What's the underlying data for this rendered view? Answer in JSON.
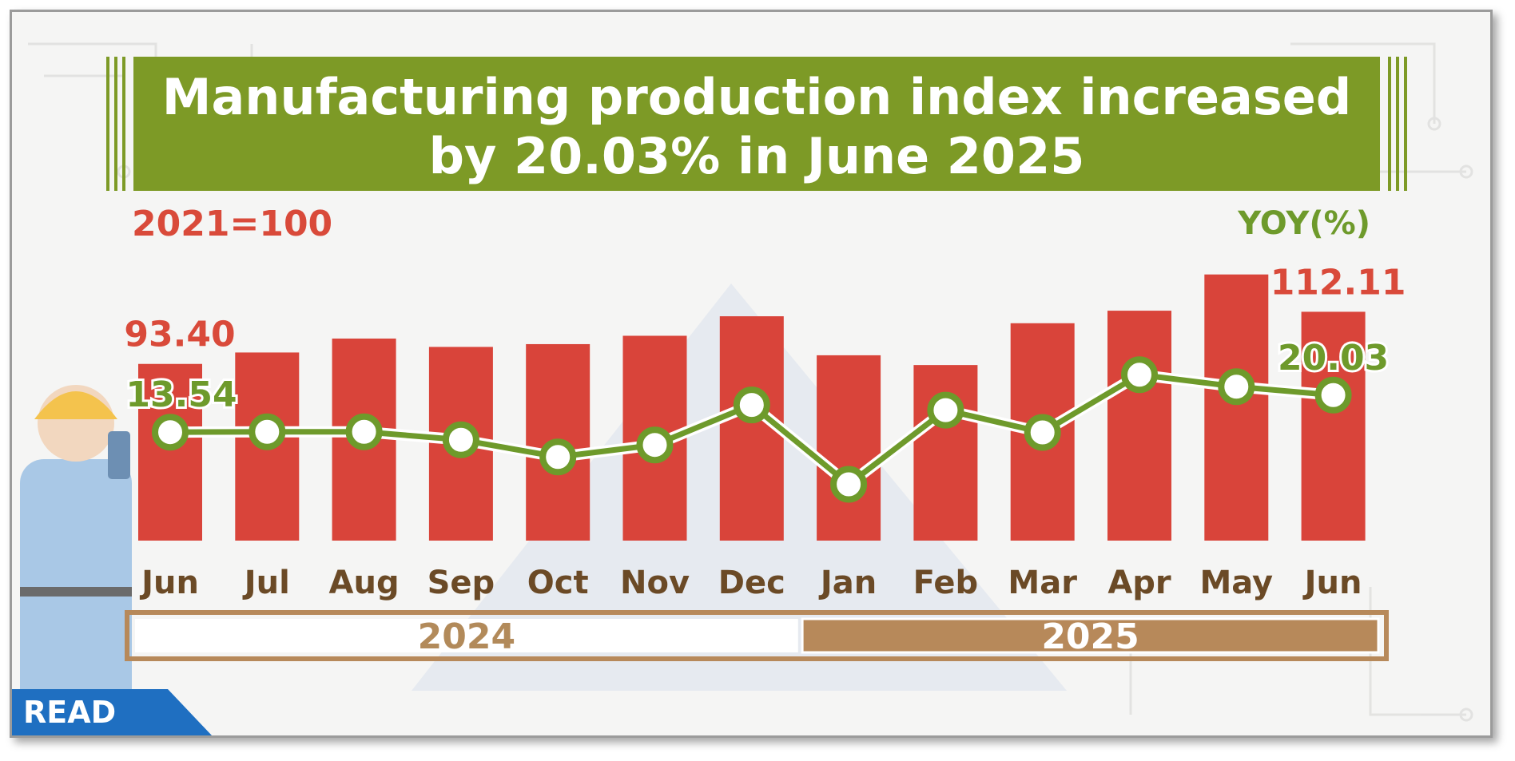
{
  "title_lines": [
    "Manufacturing production index increased",
    "by 20.03% in June 2025"
  ],
  "base_label": "2021=100",
  "yoy_label": "YOY(%)",
  "badge": "READ",
  "colors": {
    "title_bg": "#7d9a26",
    "bar": "#d9443a",
    "line": "#6e9a2b",
    "year_2024_text": "#b28a5a",
    "year_2025_bg": "#b7895a",
    "month_text": "#6b4a26"
  },
  "chart_data": {
    "type": "bar",
    "categories": [
      "Jun",
      "Jul",
      "Aug",
      "Sep",
      "Oct",
      "Nov",
      "Dec",
      "Jan",
      "Feb",
      "Mar",
      "Apr",
      "May",
      "Jun"
    ],
    "years": [
      {
        "label": "2024",
        "from": 0,
        "to": 6
      },
      {
        "label": "2025",
        "from": 7,
        "to": 12
      }
    ],
    "series": [
      {
        "type": "bar",
        "values": [
          93.4,
          97.5,
          102.5,
          99.5,
          100.5,
          103.5,
          110.5,
          96.5,
          93.0,
          108.0,
          112.5,
          125.5,
          112.11
        ]
      },
      {
        "type": "line",
        "values": [
          13.54,
          13.6,
          13.6,
          12.2,
          9.2,
          11.3,
          18.3,
          4.4,
          17.4,
          13.5,
          23.6,
          21.5,
          20.03
        ]
      }
    ],
    "labels_shown": {
      "bar": {
        "0": "93.40",
        "12": "112.11"
      },
      "line": {
        "0": "13.54",
        "12": "20.03"
      }
    }
  }
}
